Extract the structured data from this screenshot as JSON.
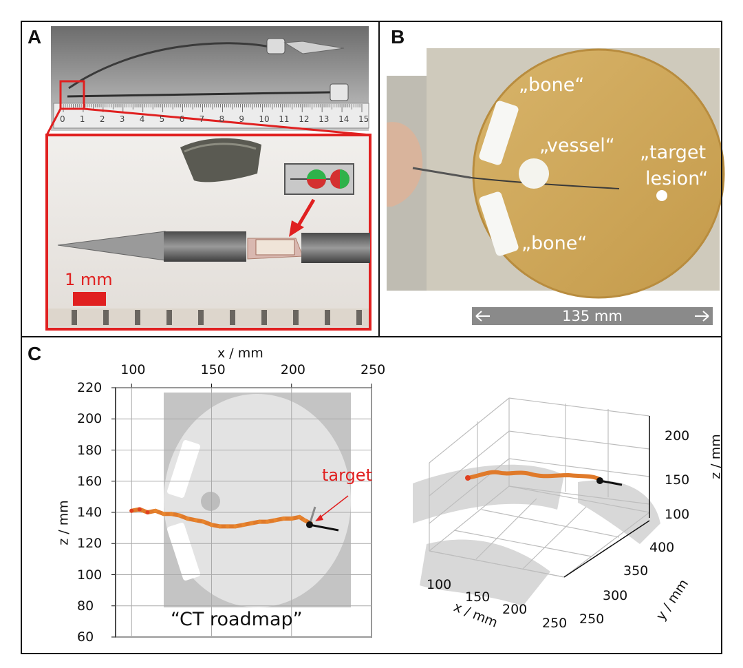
{
  "panels": {
    "a": {
      "letter": "A",
      "scale_label": "1 mm"
    },
    "b": {
      "letter": "B",
      "labels": {
        "bone_top": "„bone“",
        "vessel": "„vessel“",
        "target_line1": "„target",
        "target_line2": "lesion“",
        "bone_bottom": "„bone“"
      },
      "width_label": "135 mm"
    },
    "c": {
      "letter": "C"
    }
  },
  "ruler_numbers": [
    "0",
    "1",
    "2",
    "3",
    "4",
    "5",
    "6",
    "7",
    "8",
    "9",
    "10",
    "11",
    "12",
    "13",
    "14",
    "15"
  ],
  "chart_data": [
    {
      "type": "line",
      "xlabel": "x / mm",
      "ylabel": "z / mm",
      "x_ticks": [
        100,
        150,
        200,
        250
      ],
      "y_ticks": [
        220,
        200,
        180,
        160,
        140,
        120,
        100,
        80,
        60
      ],
      "xlim": [
        90,
        250
      ],
      "ylim": [
        60,
        220
      ],
      "grid": true,
      "background_label": "“CT roadmap”",
      "annotation": "target",
      "series": [
        {
          "x": [
            100,
            105,
            110,
            115,
            120,
            125,
            130,
            135,
            140,
            145,
            150,
            155,
            160,
            165,
            170,
            175,
            180,
            185,
            190,
            195,
            200,
            205,
            208,
            212
          ],
          "y": [
            141,
            142,
            140,
            141,
            139,
            139,
            138,
            136,
            135,
            134,
            132,
            131,
            131,
            131,
            132,
            133,
            134,
            134,
            135,
            136,
            136,
            137,
            135,
            133
          ]
        }
      ]
    },
    {
      "type": "line",
      "xlabel": "x / mm",
      "ylabel": "y / mm",
      "zlabel": "z / mm",
      "x_ticks": [
        100,
        150,
        200,
        250
      ],
      "y_ticks": [
        250,
        300,
        350,
        400
      ],
      "z_ticks": [
        100,
        150,
        200
      ]
    }
  ]
}
